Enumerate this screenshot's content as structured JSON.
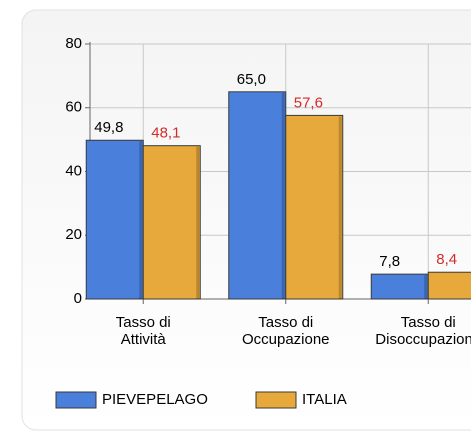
{
  "chart_data": {
    "type": "bar",
    "categories": [
      [
        "Tasso di",
        "Attività"
      ],
      [
        "Tasso di",
        "Occupazione"
      ],
      [
        "Tasso di",
        "Disoccupazione"
      ]
    ],
    "series": [
      {
        "name": "PIEVEPELAGO",
        "color": "#4a7fdb",
        "label_color": "#000000",
        "values": [
          49.8,
          65.0,
          7.8
        ],
        "value_labels": [
          "49,8",
          "65,0",
          "7,8"
        ]
      },
      {
        "name": "ITALIA",
        "color": "#e8a93c",
        "label_color": "#d42a2a",
        "values": [
          48.1,
          57.6,
          8.4
        ],
        "value_labels": [
          "48,1",
          "57,6",
          "8,4"
        ]
      }
    ],
    "ylim": [
      0,
      80
    ],
    "yticks": [
      0,
      20,
      40,
      60,
      80
    ],
    "grid": true,
    "legend": "bottom"
  }
}
